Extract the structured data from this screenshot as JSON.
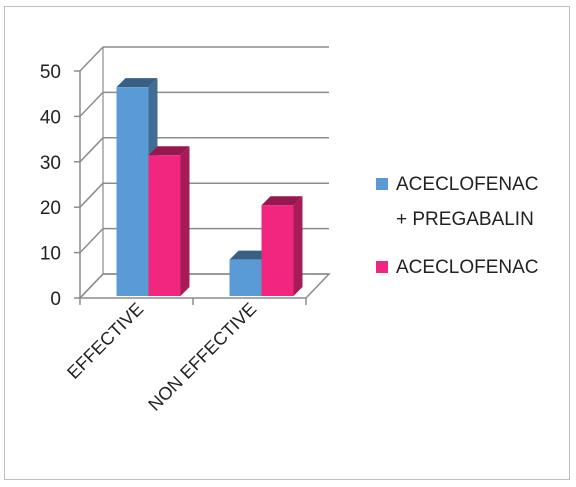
{
  "chart_data": {
    "type": "bar",
    "categories": [
      "EFFECTIVE",
      "NON EFFECTIVE"
    ],
    "series": [
      {
        "name": "ACECLOFENAC + PREGABALIN",
        "legend_lines": [
          "ACECLOFENAC",
          "+ PREGABALIN"
        ],
        "values": [
          46,
          8
        ],
        "color": "#5b9bd5"
      },
      {
        "name": "ACECLOFENAC",
        "legend_lines": [
          "ACECLOFENAC"
        ],
        "values": [
          31,
          20
        ],
        "color": "#f0267f"
      }
    ],
    "yticks": [
      "0",
      "10",
      "20",
      "30",
      "40",
      "50"
    ],
    "ylim": [
      0,
      50
    ],
    "grid": true,
    "legend_position": "right",
    "title": "",
    "xlabel": "",
    "ylabel": ""
  }
}
